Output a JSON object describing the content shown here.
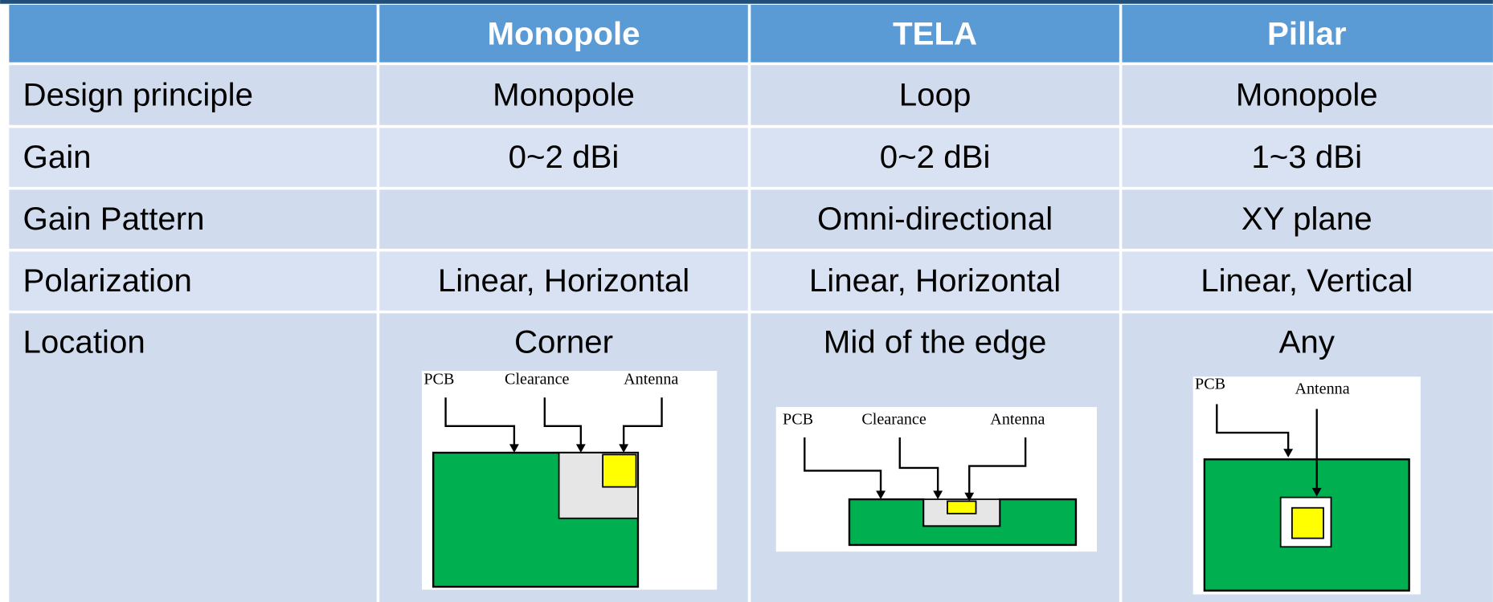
{
  "table": {
    "columns": [
      "Monopole",
      "TELA",
      "Pillar"
    ],
    "rows": [
      {
        "label": "Design principle",
        "cells": [
          "Monopole",
          "Loop",
          "Monopole"
        ]
      },
      {
        "label": "Gain",
        "cells": [
          "0~2 dBi",
          "0~2 dBi",
          "1~3 dBi"
        ]
      },
      {
        "label": "Gain Pattern",
        "cells": [
          null,
          "Omni-directional",
          "XY plane"
        ]
      },
      {
        "label": "Polarization",
        "cells": [
          "Linear, Horizontal",
          "Linear, Horizontal",
          "Linear, Vertical"
        ]
      },
      {
        "label": "Location",
        "cells": [
          "Corner",
          "Mid of the edge",
          "Any"
        ]
      }
    ]
  },
  "diagrams": [
    {
      "labels": [
        "PCB",
        "Clearance",
        "Antenna"
      ]
    },
    {
      "labels": [
        "PCB",
        "Clearance",
        "Antenna"
      ]
    },
    {
      "labels": [
        "PCB",
        "Antenna"
      ]
    }
  ]
}
